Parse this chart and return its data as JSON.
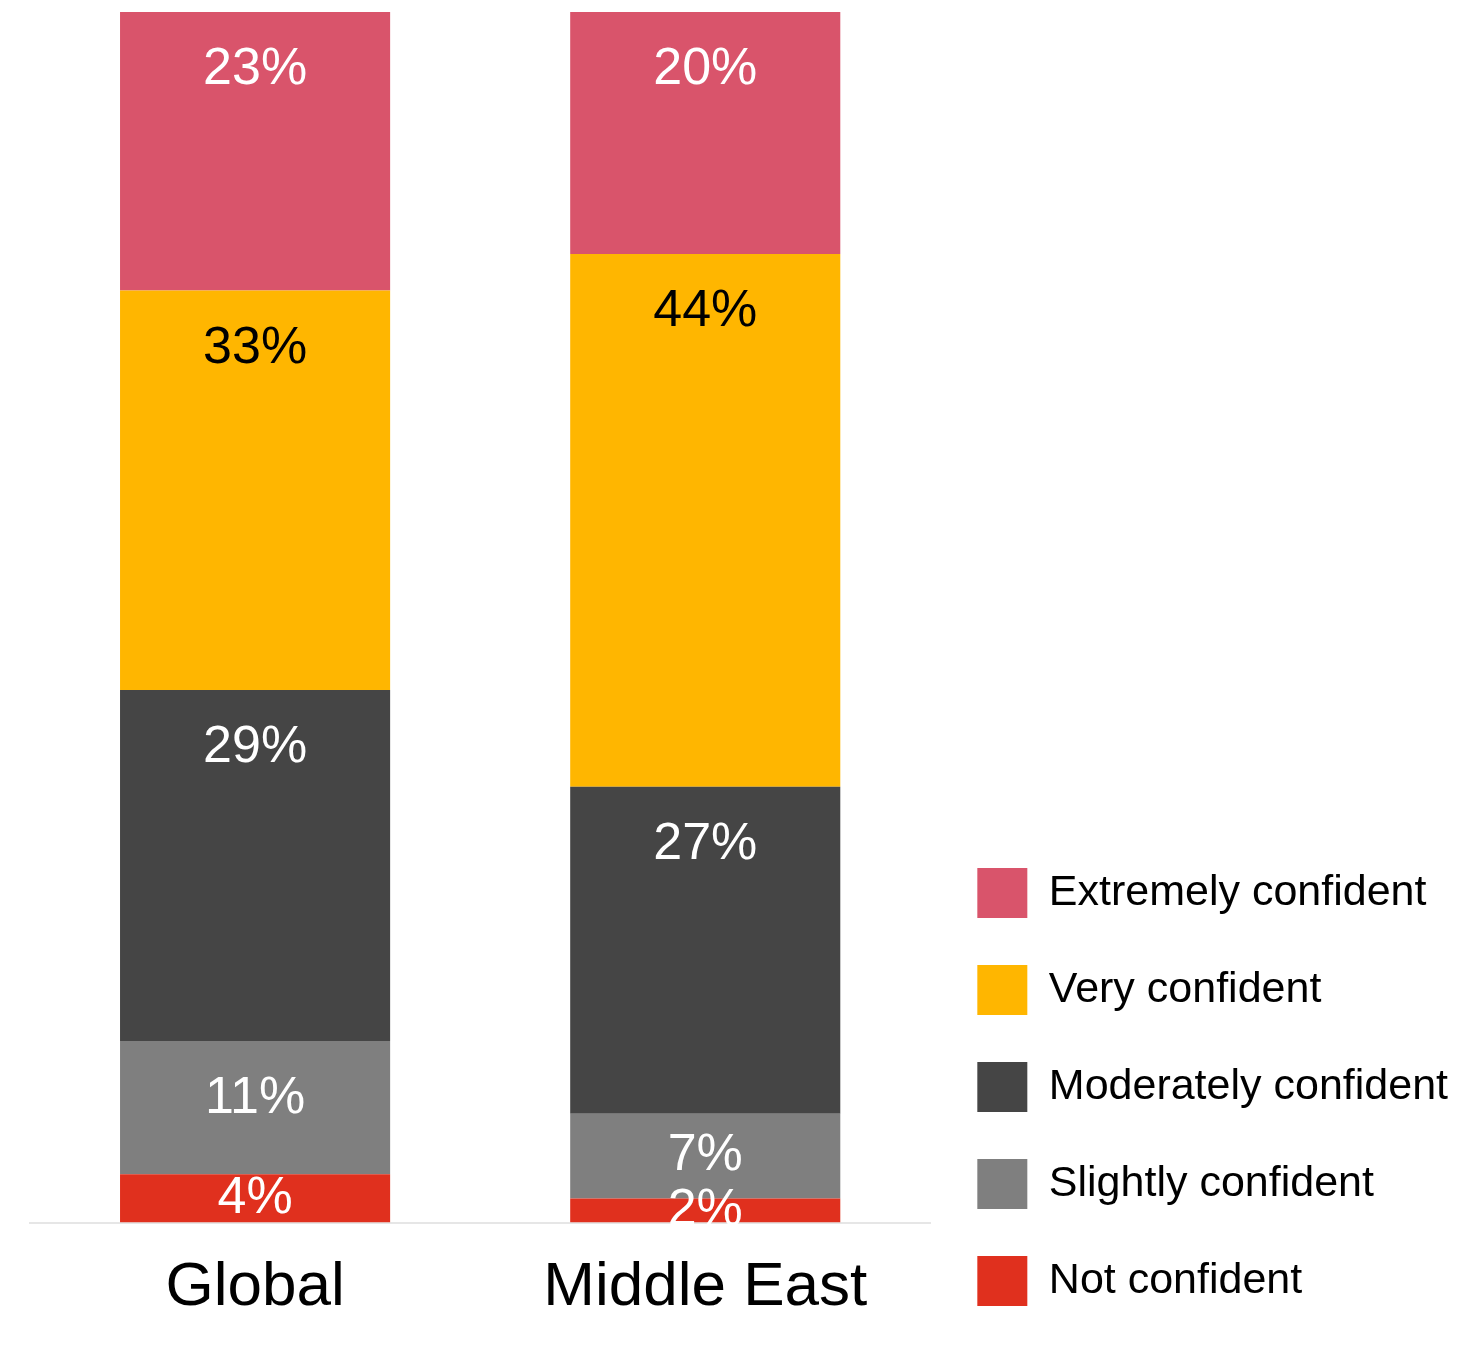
{
  "chart_data": {
    "type": "bar",
    "stacked": true,
    "categories": [
      "Global",
      "Middle East"
    ],
    "tick_labels": "x",
    "grid": false,
    "legend": "bottom right",
    "series": [
      {
        "name": "Not confident",
        "color": "#e0301e",
        "values": [
          4,
          2
        ],
        "value_labels": [
          "4%",
          "2%"
        ]
      },
      {
        "name": "Slightly confident",
        "color": "#7f7f7f",
        "values": [
          11,
          7
        ],
        "value_labels": [
          "11%",
          "7%"
        ]
      },
      {
        "name": "Moderately confident",
        "color": "#454545",
        "values": [
          29,
          27
        ],
        "value_labels": [
          "29%",
          "27%"
        ]
      },
      {
        "name": "Very confident",
        "color": "#ffb600",
        "values": [
          33,
          44
        ],
        "value_labels": [
          "33%",
          "44%"
        ]
      },
      {
        "name": "Extremely confident",
        "color": "#d9546b",
        "values": [
          23,
          20
        ],
        "value_labels": [
          "23%",
          "20%"
        ]
      }
    ]
  }
}
